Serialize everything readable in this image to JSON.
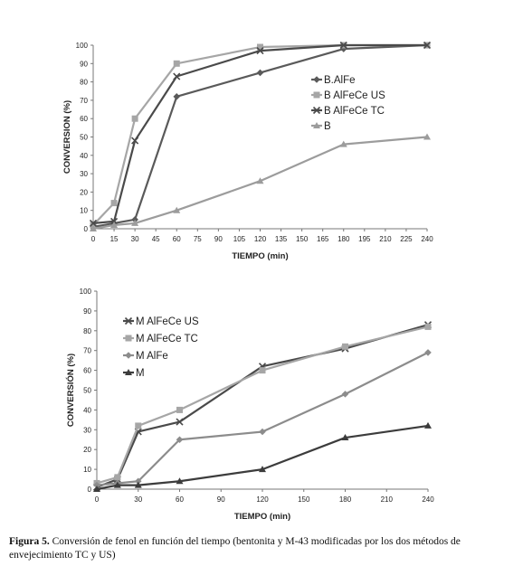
{
  "caption": {
    "label": "Figura 5.",
    "text": "Conversión de fenol en función del tiempo (bentonita y M-43 modificadas por los dos métodos de envejecimiento TC y US)"
  },
  "chart_data": [
    {
      "type": "line",
      "xlabel": "TIEMPO (min)",
      "ylabel": "CONVERSION (%)",
      "xlim": [
        0,
        240
      ],
      "ylim": [
        0,
        100
      ],
      "xticks": [
        0,
        15,
        30,
        45,
        60,
        75,
        90,
        105,
        120,
        135,
        150,
        165,
        180,
        195,
        210,
        225,
        240
      ],
      "yticks": [
        0,
        10,
        20,
        30,
        40,
        50,
        60,
        70,
        80,
        90,
        100
      ],
      "grid": false,
      "legend_position": "right",
      "series": [
        {
          "name": "B.AlFe",
          "marker": "diamond",
          "color": "#5a5a5a",
          "x": [
            0,
            15,
            30,
            60,
            120,
            180,
            240
          ],
          "y": [
            1,
            3,
            5,
            72,
            85,
            98,
            100
          ]
        },
        {
          "name": "B AlFeCe US",
          "marker": "square",
          "color": "#a6a6a6",
          "x": [
            0,
            15,
            30,
            60,
            120,
            180,
            240
          ],
          "y": [
            2,
            14,
            60,
            90,
            99,
            100,
            100
          ]
        },
        {
          "name": "B AlFeCe TC",
          "marker": "x",
          "color": "#4a4a4a",
          "x": [
            0,
            15,
            30,
            60,
            120,
            180,
            240
          ],
          "y": [
            3,
            4,
            48,
            83,
            97,
            100,
            100
          ]
        },
        {
          "name": "B",
          "marker": "triangle",
          "color": "#9c9c9c",
          "x": [
            0,
            15,
            30,
            60,
            120,
            180,
            240
          ],
          "y": [
            0,
            2,
            3,
            10,
            26,
            46,
            50
          ]
        }
      ]
    },
    {
      "type": "line",
      "xlabel": "TIEMPO (min)",
      "ylabel": "CONVERSIÓN  (%)",
      "xlim": [
        0,
        240
      ],
      "ylim": [
        0,
        100
      ],
      "xticks": [
        0,
        30,
        60,
        90,
        120,
        150,
        180,
        210,
        240
      ],
      "yticks": [
        0,
        10,
        20,
        30,
        40,
        50,
        60,
        70,
        80,
        90,
        100
      ],
      "grid": false,
      "legend_position": "left",
      "series": [
        {
          "name": "M AlFeCe US",
          "marker": "x",
          "color": "#4a4a4a",
          "x": [
            0,
            15,
            30,
            60,
            120,
            180,
            240
          ],
          "y": [
            1,
            5,
            29,
            34,
            62,
            71,
            83
          ]
        },
        {
          "name": "M AlFeCe TC",
          "marker": "square",
          "color": "#a6a6a6",
          "x": [
            0,
            15,
            30,
            60,
            120,
            180,
            240
          ],
          "y": [
            3,
            6,
            32,
            40,
            60,
            72,
            82
          ]
        },
        {
          "name": "M AlFe",
          "marker": "diamond",
          "color": "#8c8c8c",
          "x": [
            0,
            15,
            30,
            60,
            120,
            180,
            240
          ],
          "y": [
            2,
            3,
            4,
            25,
            29,
            48,
            69
          ]
        },
        {
          "name": "M",
          "marker": "triangle",
          "color": "#3c3c3c",
          "x": [
            0,
            15,
            30,
            60,
            120,
            180,
            240
          ],
          "y": [
            0,
            2,
            2,
            4,
            10,
            26,
            32
          ]
        }
      ]
    }
  ]
}
